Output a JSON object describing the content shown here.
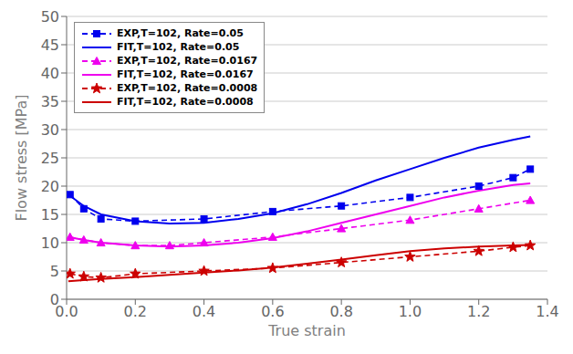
{
  "chart_data": {
    "type": "line",
    "xlabel": "True strain",
    "ylabel": "Flow stress [MPa]",
    "xlim": [
      0,
      1.4
    ],
    "ylim": [
      0,
      50
    ],
    "xticks": [
      {
        "value": 0,
        "label": "0.0"
      },
      0.2,
      0.4,
      0.6,
      0.8,
      {
        "value": 1,
        "label": "1.0"
      },
      1.2,
      1.4
    ],
    "yticks": [
      0,
      5,
      10,
      15,
      20,
      25,
      30,
      35,
      40,
      45,
      50
    ],
    "grid": "y",
    "legend": "upper left",
    "series": [
      {
        "name": "EXP,T=102, Rate=0.05",
        "color": "#0000EE",
        "line_style": "dashed",
        "marker": "square",
        "x": [
          0.01,
          0.05,
          0.1,
          0.2,
          0.4,
          0.6,
          0.8,
          1.0,
          1.2,
          1.3,
          1.35
        ],
        "values": [
          18.5,
          16.0,
          14.2,
          13.8,
          14.2,
          15.5,
          16.5,
          18.0,
          20.0,
          21.5,
          23.0
        ]
      },
      {
        "name": "FIT,T=102, Rate=0.05",
        "color": "#0000EE",
        "line_style": "solid",
        "x": [
          0.005,
          0.05,
          0.1,
          0.2,
          0.3,
          0.4,
          0.5,
          0.6,
          0.7,
          0.8,
          0.9,
          1.0,
          1.1,
          1.2,
          1.3,
          1.35
        ],
        "values": [
          18.5,
          16.5,
          15.0,
          13.8,
          13.4,
          13.5,
          14.2,
          15.2,
          16.8,
          18.8,
          21.0,
          23.0,
          25.0,
          26.8,
          28.2,
          28.8
        ]
      },
      {
        "name": "EXP,T=102, Rate=0.0167",
        "color": "#EE00EE",
        "line_style": "dashed",
        "marker": "triangle",
        "x": [
          0.01,
          0.05,
          0.1,
          0.2,
          0.3,
          0.4,
          0.6,
          0.8,
          1.0,
          1.2,
          1.35
        ],
        "values": [
          11.0,
          10.5,
          10.0,
          9.5,
          9.5,
          10.0,
          11.0,
          12.5,
          14.0,
          16.0,
          17.5
        ]
      },
      {
        "name": "FIT,T=102, Rate=0.0167",
        "color": "#EE00EE",
        "line_style": "solid",
        "x": [
          0.005,
          0.05,
          0.1,
          0.2,
          0.3,
          0.4,
          0.5,
          0.6,
          0.7,
          0.8,
          0.9,
          1.0,
          1.1,
          1.2,
          1.3,
          1.35
        ],
        "values": [
          11.0,
          10.5,
          10.0,
          9.5,
          9.3,
          9.5,
          10.0,
          10.8,
          12.0,
          13.5,
          15.0,
          16.5,
          18.0,
          19.2,
          20.2,
          20.5
        ]
      },
      {
        "name": "EXP,T=102, Rate=0.0008",
        "color": "#CC0000",
        "line_style": "dashed",
        "marker": "star",
        "x": [
          0.01,
          0.05,
          0.1,
          0.2,
          0.4,
          0.6,
          0.8,
          1.0,
          1.2,
          1.3,
          1.35
        ],
        "values": [
          4.5,
          4.0,
          3.8,
          4.5,
          5.0,
          5.5,
          6.5,
          7.5,
          8.5,
          9.2,
          9.5
        ]
      },
      {
        "name": "FIT,T=102, Rate=0.0008",
        "color": "#CC0000",
        "line_style": "solid",
        "x": [
          0.005,
          0.05,
          0.1,
          0.2,
          0.3,
          0.4,
          0.5,
          0.6,
          0.7,
          0.8,
          0.9,
          1.0,
          1.1,
          1.2,
          1.3,
          1.35
        ],
        "values": [
          3.2,
          3.4,
          3.6,
          3.9,
          4.3,
          4.7,
          5.1,
          5.6,
          6.3,
          7.0,
          7.8,
          8.5,
          9.0,
          9.3,
          9.5,
          9.6
        ]
      }
    ]
  }
}
